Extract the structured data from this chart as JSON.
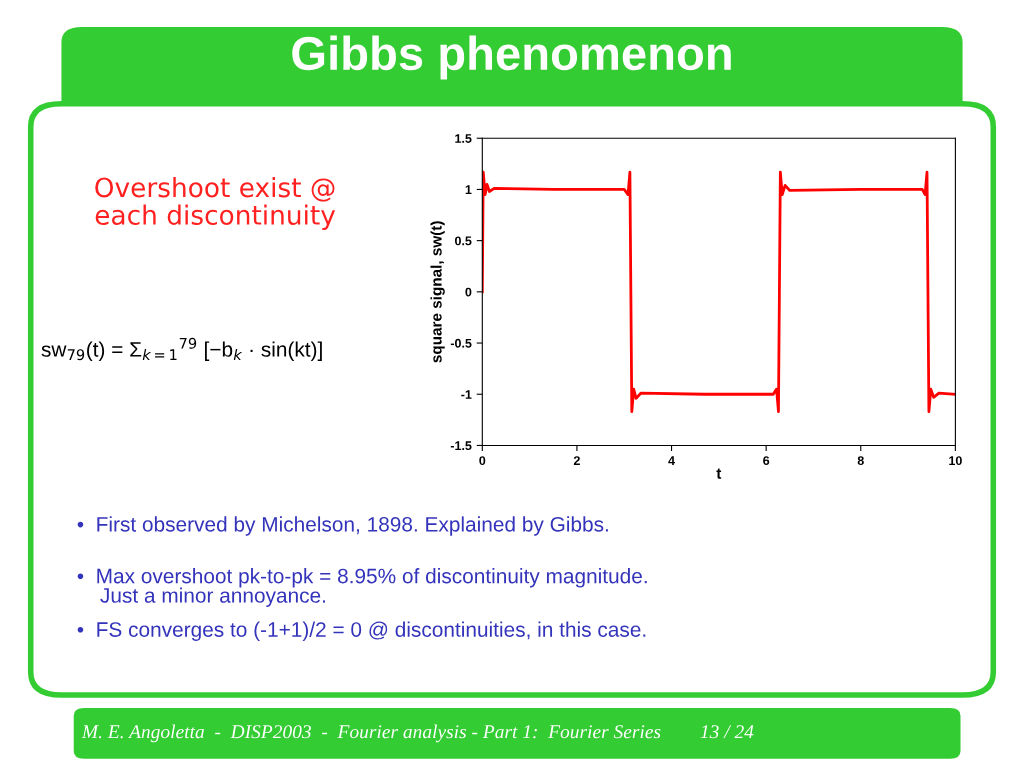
{
  "chart_data": {
    "type": "line",
    "title": "Gibbs phenomenon",
    "xlabel": "t",
    "ylabel": "square signal, sw(t)",
    "series": [
      {
        "color": "#ff0000",
        "x": [
          0,
          0.02,
          0.06,
          0.1,
          0.15,
          0.25,
          1.5,
          3.0,
          3.08,
          3.12,
          3.14,
          3.16,
          3.2,
          3.25,
          3.35,
          4.7,
          6.15,
          6.22,
          6.26,
          6.28,
          6.3,
          6.34,
          6.4,
          6.5,
          8.0,
          9.3,
          9.36,
          9.4,
          9.42,
          9.44,
          9.48,
          9.54,
          9.65,
          10.0
        ],
        "values": [
          0,
          1.17,
          0.95,
          1.05,
          0.98,
          1.01,
          1.0,
          1.0,
          0.95,
          1.17,
          0,
          -1.17,
          -0.95,
          -1.04,
          -0.99,
          -1.0,
          -1.0,
          -0.95,
          -1.17,
          0,
          1.17,
          0.95,
          1.04,
          0.99,
          1.0,
          1.0,
          0.95,
          1.17,
          0,
          -1.17,
          -0.95,
          -1.03,
          -0.99,
          -1.0
        ]
      }
    ],
    "xlim": [
      0,
      10
    ],
    "ylim": [
      -1.5,
      1.5
    ],
    "xticks": [
      0,
      2,
      4,
      6,
      8,
      10
    ],
    "yticks": [
      -1.5,
      -1,
      -0.5,
      0,
      0.5,
      1,
      1.5
    ],
    "grid": false,
    "legend": false,
    "marker": "none",
    "line_style": "solid",
    "annotations": [
      "Overshoot exist @\neach discontinuity",
      "sw$_{79}$(t) = Σ$_{k=1}$$^{79}$ [−b$_{k}$ · sin(kt)]",
      "•  First observed by Michelson, 1898. Explained by Gibbs.",
      "•  Max overshoot pk-to-pk = 8.95% of discontinuity magnitude.\n    Just a minor annoyance.",
      "•  FS converges to (-1+1)/2 = 0 @ discontinuities, in this case.",
      "M. E. Angoletta  -  DISP2003  -  Fourier analysis - Part 1:  Fourier Series        13 / 24"
    ]
  }
}
